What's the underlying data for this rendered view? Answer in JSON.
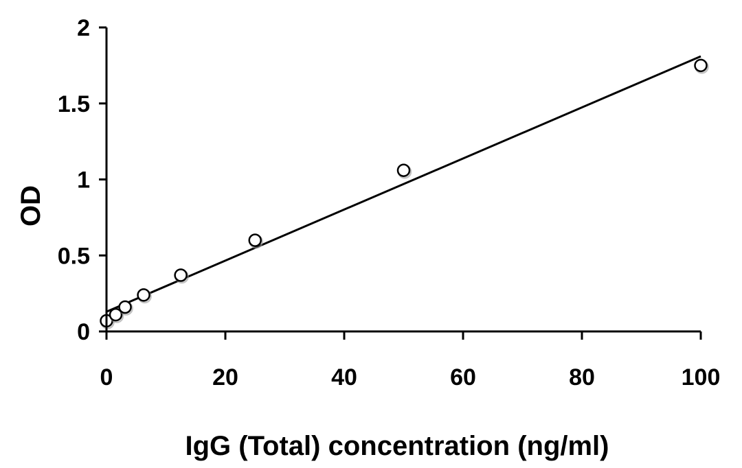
{
  "chart_data": {
    "type": "scatter",
    "title": "",
    "xlabel": "IgG (Total) concentration (ng/ml)",
    "ylabel": "OD",
    "xlim": [
      0,
      100
    ],
    "ylim": [
      0,
      2
    ],
    "x_ticks": [
      0,
      20,
      40,
      60,
      80,
      100
    ],
    "y_ticks": [
      0,
      0.5,
      1,
      1.5,
      2
    ],
    "x_tick_labels": [
      "0",
      "20",
      "40",
      "60",
      "80",
      "100"
    ],
    "y_tick_labels": [
      "0",
      "0.5",
      "1",
      "1.5",
      "2"
    ],
    "grid": false,
    "legend": "none",
    "series": [
      {
        "points": [
          {
            "x": 0,
            "y": 0.07
          },
          {
            "x": 1.56,
            "y": 0.11
          },
          {
            "x": 3.13,
            "y": 0.16
          },
          {
            "x": 6.25,
            "y": 0.24
          },
          {
            "x": 12.5,
            "y": 0.37
          },
          {
            "x": 25,
            "y": 0.6
          },
          {
            "x": 50,
            "y": 1.06
          },
          {
            "x": 100,
            "y": 1.75
          }
        ],
        "marker": "open-circle",
        "marker_color": "#000000"
      }
    ],
    "trendline": {
      "type": "linear",
      "points": [
        {
          "x": 0,
          "y": 0.13
        },
        {
          "x": 100,
          "y": 1.81
        }
      ],
      "color": "#000000"
    }
  }
}
